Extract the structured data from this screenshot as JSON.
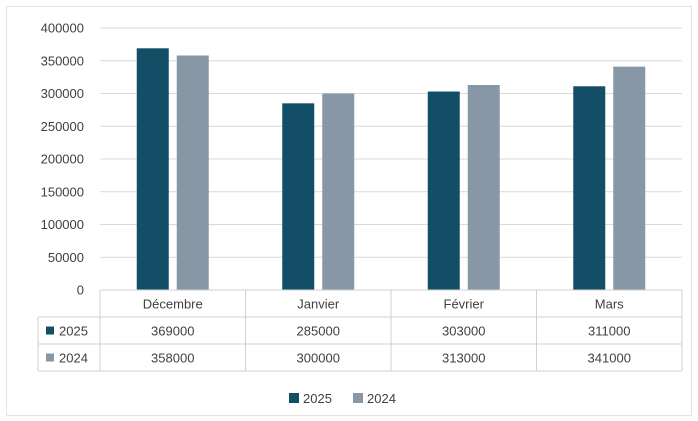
{
  "chart_data": {
    "type": "bar",
    "categories": [
      "Décembre",
      "Janvier",
      "Février",
      "Mars"
    ],
    "series": [
      {
        "name": "2025",
        "values": [
          369000,
          285000,
          303000,
          311000
        ],
        "color": "#134e67"
      },
      {
        "name": "2024",
        "values": [
          358000,
          300000,
          313000,
          341000
        ],
        "color": "#8797a6"
      }
    ],
    "ylim": [
      0,
      400000
    ],
    "yticks": [
      0,
      50000,
      100000,
      150000,
      200000,
      250000,
      300000,
      350000,
      400000
    ],
    "grid": true,
    "data_table": true,
    "legend_position": "bottom",
    "title": "",
    "xlabel": "",
    "ylabel": ""
  }
}
